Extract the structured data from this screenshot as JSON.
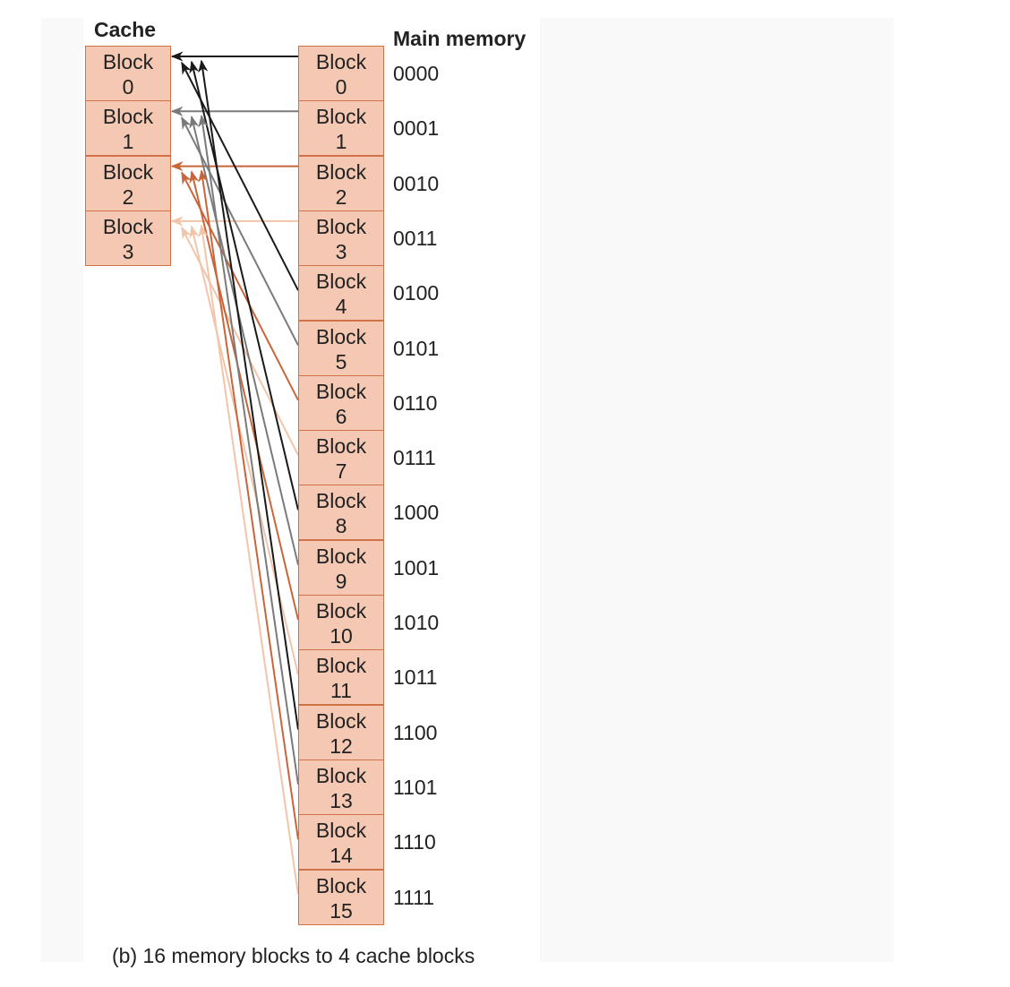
{
  "cache_heading": "Cache",
  "memory_heading": "Main memory",
  "caption": "(b) 16 memory blocks to 4 cache blocks",
  "cache_blocks": [
    {
      "word": "Block",
      "num": "0"
    },
    {
      "word": "Block",
      "num": "1"
    },
    {
      "word": "Block",
      "num": "2"
    },
    {
      "word": "Block",
      "num": "3"
    }
  ],
  "memory_blocks": [
    {
      "word": "Block",
      "num": "0",
      "address": "0000",
      "maps_to": 0
    },
    {
      "word": "Block",
      "num": "1",
      "address": "0001",
      "maps_to": 1
    },
    {
      "word": "Block",
      "num": "2",
      "address": "0010",
      "maps_to": 2
    },
    {
      "word": "Block",
      "num": "3",
      "address": "0011",
      "maps_to": 3
    },
    {
      "word": "Block",
      "num": "4",
      "address": "0100",
      "maps_to": 0
    },
    {
      "word": "Block",
      "num": "5",
      "address": "0101",
      "maps_to": 1
    },
    {
      "word": "Block",
      "num": "6",
      "address": "0110",
      "maps_to": 2
    },
    {
      "word": "Block",
      "num": "7",
      "address": "0111",
      "maps_to": 3
    },
    {
      "word": "Block",
      "num": "8",
      "address": "1000",
      "maps_to": 0
    },
    {
      "word": "Block",
      "num": "9",
      "address": "1001",
      "maps_to": 1
    },
    {
      "word": "Block",
      "num": "10",
      "address": "1010",
      "maps_to": 2
    },
    {
      "word": "Block",
      "num": "11",
      "address": "1011",
      "maps_to": 3
    },
    {
      "word": "Block",
      "num": "12",
      "address": "1100",
      "maps_to": 0
    },
    {
      "word": "Block",
      "num": "13",
      "address": "1101",
      "maps_to": 1
    },
    {
      "word": "Block",
      "num": "14",
      "address": "1110",
      "maps_to": 2
    },
    {
      "word": "Block",
      "num": "15",
      "address": "1111",
      "maps_to": 3
    }
  ],
  "colors": {
    "box_fill": "#f4c8b2",
    "box_border": "#cf7248",
    "arrow_cache_0": "#1a1a1a",
    "arrow_cache_1": "#7a7a7a",
    "arrow_cache_2": "#c9653a",
    "arrow_cache_3": "#f2c4aa"
  }
}
